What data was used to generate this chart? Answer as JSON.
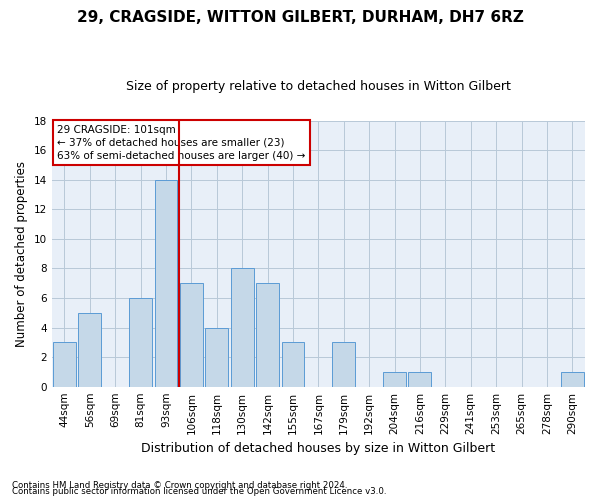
{
  "title": "29, CRAGSIDE, WITTON GILBERT, DURHAM, DH7 6RZ",
  "subtitle": "Size of property relative to detached houses in Witton Gilbert",
  "xlabel": "Distribution of detached houses by size in Witton Gilbert",
  "ylabel": "Number of detached properties",
  "footnote1": "Contains HM Land Registry data © Crown copyright and database right 2024.",
  "footnote2": "Contains public sector information licensed under the Open Government Licence v3.0.",
  "categories": [
    "44sqm",
    "56sqm",
    "69sqm",
    "81sqm",
    "93sqm",
    "106sqm",
    "118sqm",
    "130sqm",
    "142sqm",
    "155sqm",
    "167sqm",
    "179sqm",
    "192sqm",
    "204sqm",
    "216sqm",
    "229sqm",
    "241sqm",
    "253sqm",
    "265sqm",
    "278sqm",
    "290sqm"
  ],
  "values": [
    3,
    5,
    0,
    6,
    14,
    7,
    4,
    8,
    7,
    3,
    0,
    3,
    0,
    1,
    1,
    0,
    0,
    0,
    0,
    0,
    1
  ],
  "bar_color": "#c5d8e8",
  "bar_edge_color": "#5b9bd5",
  "reference_line_index": 4.5,
  "reference_line_color": "#cc0000",
  "annotation_line1": "29 CRAGSIDE: 101sqm",
  "annotation_line2": "← 37% of detached houses are smaller (23)",
  "annotation_line3": "63% of semi-detached houses are larger (40) →",
  "annotation_box_color": "#ffffff",
  "annotation_box_edge_color": "#cc0000",
  "ylim": [
    0,
    18
  ],
  "yticks": [
    0,
    2,
    4,
    6,
    8,
    10,
    12,
    14,
    16,
    18
  ],
  "grid_color": "#b8c8d8",
  "background_color": "#e8eff8",
  "title_fontsize": 11,
  "subtitle_fontsize": 9,
  "tick_fontsize": 7.5,
  "ylabel_fontsize": 8.5,
  "xlabel_fontsize": 9
}
